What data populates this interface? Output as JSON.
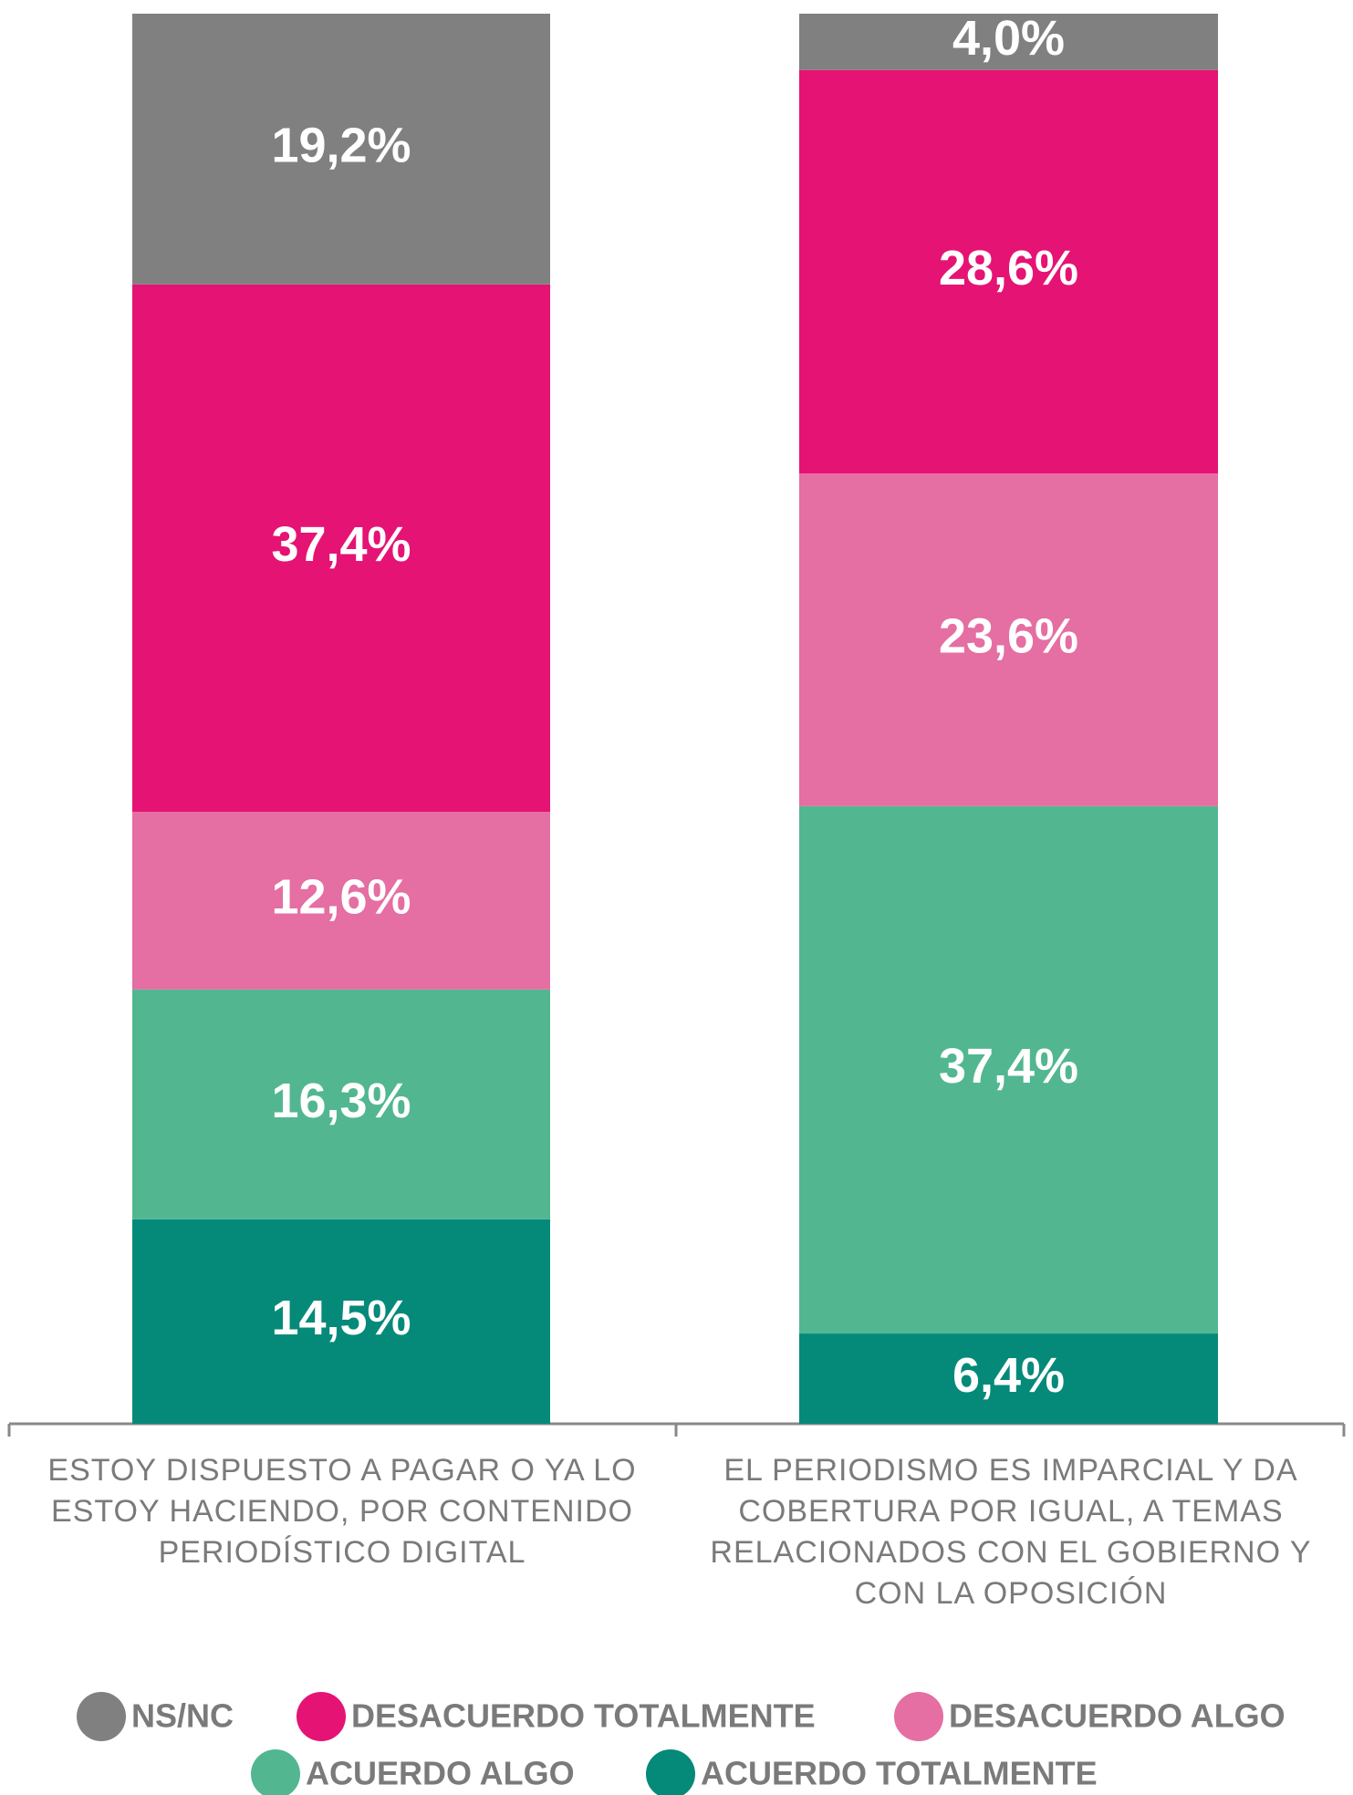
{
  "chart_data": {
    "type": "stacked_bar",
    "categories": [
      "ESTOY DISPUESTO A PAGAR O YA LO ESTOY HACIENDO, POR CONTENIDO PERIODÍSTICO DIGITAL",
      "EL PERIODISMO ES IMPARCIAL Y DA COBERTURA POR IGUAL, A TEMAS RELACIONADOS CON EL GOBIERNO Y CON LA OPOSICIÓN"
    ],
    "ylim": [
      0,
      100
    ],
    "series": [
      {
        "name": "NS/NC",
        "color": "#808080",
        "values": [
          19.2,
          4.0
        ],
        "value_labels": [
          "19,2%",
          "4,0%"
        ]
      },
      {
        "name": "DESACUERDO TOTALMENTE",
        "color": "#e51374",
        "values": [
          37.4,
          28.6
        ],
        "value_labels": [
          "37,4%",
          "28,6%"
        ]
      },
      {
        "name": "DESACUERDO ALGO",
        "color": "#e56ea3",
        "values": [
          12.6,
          23.6
        ],
        "value_labels": [
          "12,6%",
          "23,6%"
        ]
      },
      {
        "name": "ACUERDO ALGO",
        "color": "#52b791",
        "values": [
          16.3,
          37.4
        ],
        "value_labels": [
          "16,3%",
          "37,4%"
        ]
      },
      {
        "name": "ACUERDO TOTALMENTE",
        "color": "#058a7a",
        "values": [
          14.5,
          6.4
        ],
        "value_labels": [
          "14,5%",
          "6,4%"
        ]
      }
    ]
  }
}
